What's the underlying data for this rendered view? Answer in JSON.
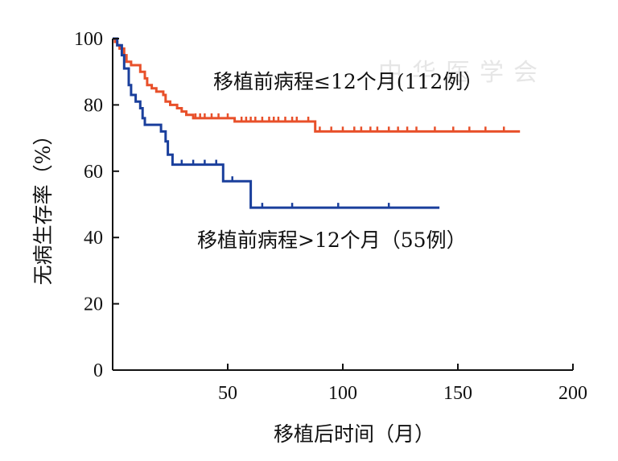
{
  "chart_data": {
    "type": "line",
    "xlabel": "移植后时间（月）",
    "ylabel": "无病生存率（%）",
    "xlim": [
      0,
      200
    ],
    "ylim": [
      0,
      100
    ],
    "xticks": [
      50,
      100,
      150,
      200
    ],
    "yticks": [
      0,
      20,
      40,
      60,
      80,
      100
    ],
    "grid": false,
    "series": [
      {
        "name": "移植前病程≤12个月(112例）",
        "color": "#e8502a",
        "steps": [
          [
            0,
            100
          ],
          [
            1,
            99
          ],
          [
            2,
            98
          ],
          [
            3,
            97
          ],
          [
            5,
            95
          ],
          [
            6,
            93
          ],
          [
            8,
            92
          ],
          [
            12,
            90
          ],
          [
            14,
            88
          ],
          [
            15,
            86
          ],
          [
            17,
            85
          ],
          [
            19,
            84
          ],
          [
            22,
            83
          ],
          [
            23,
            81
          ],
          [
            25,
            80
          ],
          [
            28,
            79
          ],
          [
            30,
            78
          ],
          [
            32,
            77
          ],
          [
            35,
            76
          ],
          [
            53,
            75
          ],
          [
            88,
            72
          ],
          [
            177,
            72
          ]
        ],
        "censored": [
          [
            36,
            76
          ],
          [
            38,
            76
          ],
          [
            40,
            76
          ],
          [
            43,
            76
          ],
          [
            46,
            76
          ],
          [
            50,
            76
          ],
          [
            56,
            75
          ],
          [
            58,
            75
          ],
          [
            60,
            75
          ],
          [
            62,
            75
          ],
          [
            65,
            75
          ],
          [
            68,
            75
          ],
          [
            70,
            75
          ],
          [
            72,
            75
          ],
          [
            75,
            75
          ],
          [
            78,
            75
          ],
          [
            80,
            75
          ],
          [
            85,
            75
          ],
          [
            90,
            72
          ],
          [
            95,
            72
          ],
          [
            100,
            72
          ],
          [
            105,
            72
          ],
          [
            108,
            72
          ],
          [
            112,
            72
          ],
          [
            115,
            72
          ],
          [
            120,
            72
          ],
          [
            124,
            72
          ],
          [
            128,
            72
          ],
          [
            132,
            72
          ],
          [
            140,
            72
          ],
          [
            148,
            72
          ],
          [
            155,
            72
          ],
          [
            162,
            72
          ],
          [
            170,
            72
          ]
        ]
      },
      {
        "name": "移植前病程>12个月（55例）",
        "color": "#1a3f9c",
        "steps": [
          [
            0,
            100
          ],
          [
            2,
            98
          ],
          [
            4,
            95
          ],
          [
            5,
            91
          ],
          [
            7,
            86
          ],
          [
            8,
            83
          ],
          [
            10,
            81
          ],
          [
            12,
            79
          ],
          [
            13,
            76
          ],
          [
            14,
            74
          ],
          [
            21,
            72
          ],
          [
            23,
            69
          ],
          [
            24,
            65
          ],
          [
            26,
            62
          ],
          [
            48,
            57
          ],
          [
            60,
            49
          ],
          [
            142,
            49
          ]
        ],
        "censored": [
          [
            30,
            62
          ],
          [
            35,
            62
          ],
          [
            40,
            62
          ],
          [
            45,
            62
          ],
          [
            52,
            57
          ],
          [
            65,
            49
          ],
          [
            78,
            49
          ],
          [
            98,
            49
          ],
          [
            120,
            49
          ]
        ]
      }
    ],
    "annotations": [
      "移植前病程≤12个月(112例）",
      "移植前病程>12个月（55例）"
    ]
  },
  "watermark": "中华医学会"
}
